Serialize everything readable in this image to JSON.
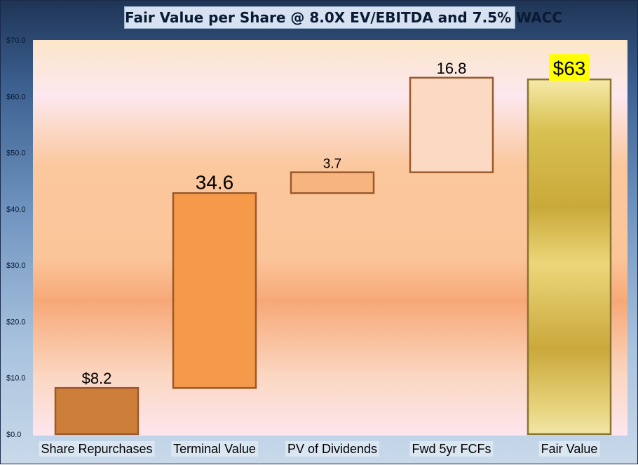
{
  "chart_data": {
    "type": "bar",
    "subtype": "waterfall",
    "title": "Fair Value per Share @ 8.0X EV/EBITDA and 7.5% WACC",
    "categories": [
      "Share Repurchases",
      "Terminal Value",
      "PV of Dividends",
      "Fwd 5yr FCFs",
      "Fair Value"
    ],
    "values": [
      8.2,
      34.6,
      3.7,
      16.8,
      63
    ],
    "bases": [
      0,
      8.2,
      42.8,
      46.5,
      0
    ],
    "data_labels": [
      "$8.2",
      "34.6",
      "3.7",
      "16.8",
      "$63"
    ],
    "colors": [
      "#cd7f3a",
      "#f59a4a",
      "#f7b47f",
      "#fcd9c2",
      "#d6b84a"
    ],
    "highlight_label_color": "#ffff00",
    "yticks": [
      "$0.0",
      "$10.0",
      "$20.0",
      "$30.0",
      "$40.0",
      "$50.0",
      "$60.0",
      "$70.0"
    ],
    "ylim": [
      0,
      70
    ],
    "grid": false,
    "legend": "none"
  }
}
